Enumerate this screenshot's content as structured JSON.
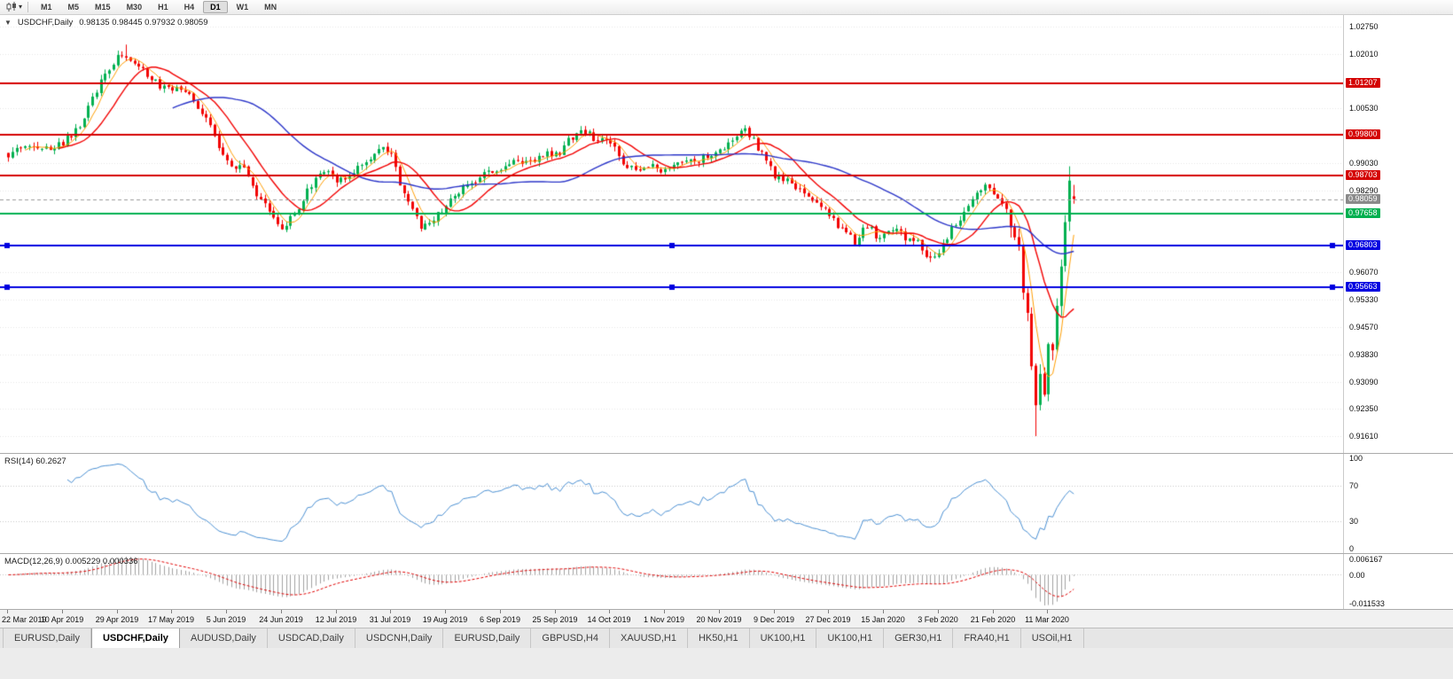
{
  "toolbar": {
    "timeframes": [
      {
        "label": "M1",
        "active": false
      },
      {
        "label": "M5",
        "active": false
      },
      {
        "label": "M15",
        "active": false
      },
      {
        "label": "M30",
        "active": false
      },
      {
        "label": "H1",
        "active": false
      },
      {
        "label": "H4",
        "active": false
      },
      {
        "label": "D1",
        "active": true
      },
      {
        "label": "W1",
        "active": false
      },
      {
        "label": "MN",
        "active": false
      }
    ]
  },
  "main_chart": {
    "title_symbol": "USDCHF,Daily",
    "ohlc_text": "0.98135 0.98445 0.97932 0.98059"
  },
  "indicators_display": {
    "rsi_label": "RSI(14) 60.2627",
    "macd_label": "MACD(12,26,9) 0.005229 0.000336"
  },
  "tab_bar": {
    "tabs": [
      {
        "label": "EURUSD,Daily",
        "active": false
      },
      {
        "label": "USDCHF,Daily",
        "active": true
      },
      {
        "label": "AUDUSD,Daily",
        "active": false
      },
      {
        "label": "USDCAD,Daily",
        "active": false
      },
      {
        "label": "USDCNH,Daily",
        "active": false
      },
      {
        "label": "EURUSD,Daily",
        "active": false
      },
      {
        "label": "GBPUSD,H4",
        "active": false
      },
      {
        "label": "XAUUSD,H1",
        "active": false
      },
      {
        "label": "HK50,H1",
        "active": false
      },
      {
        "label": "UK100,H1",
        "active": false
      },
      {
        "label": "UK100,H1",
        "active": false
      },
      {
        "label": "GER30,H1",
        "active": false
      },
      {
        "label": "FRA40,H1",
        "active": false
      },
      {
        "label": "USOil,H1",
        "active": false
      }
    ]
  },
  "chart_data": {
    "type": "candlestick",
    "symbol": "USDCHF",
    "timeframe": "Daily",
    "last_bar": {
      "open": 0.98135,
      "high": 0.98445,
      "low": 0.97932,
      "close": 0.98059
    },
    "n_bars": 254,
    "bars_per_label": 13,
    "seed": 20200319,
    "x_labels": [
      "22 Mar 2019",
      "10 Apr 2019",
      "29 Apr 2019",
      "17 May 2019",
      "5 Jun 2019",
      "24 Jun 2019",
      "12 Jul 2019",
      "31 Jul 2019",
      "19 Aug 2019",
      "6 Sep 2019",
      "25 Sep 2019",
      "14 Oct 2019",
      "1 Nov 2019",
      "20 Nov 2019",
      "9 Dec 2019",
      "27 Dec 2019",
      "15 Jan 2020",
      "3 Feb 2020",
      "21 Feb 2020",
      "11 Mar 2020"
    ],
    "y_axis": {
      "price_top": 1.03063,
      "price_bottom": 0.91153,
      "tick_labels": [
        "1.02750",
        "1.02010",
        "1.00530",
        "0.99030",
        "0.98290",
        "0.96070",
        "0.95330",
        "0.94570",
        "0.93830",
        "0.93090",
        "0.92350",
        "0.91610"
      ]
    },
    "levels": [
      {
        "price": 1.01207,
        "label": "1.01207",
        "color": "#d40000",
        "width": 2,
        "handles": false
      },
      {
        "price": 0.998,
        "label": "0.99800",
        "color": "#d40000",
        "width": 2,
        "handles": false
      },
      {
        "price": 0.98703,
        "label": "0.98703",
        "color": "#d40000",
        "width": 2,
        "handles": false
      },
      {
        "price": 0.97658,
        "label": "0.97658",
        "color": "#00b050",
        "width": 2,
        "handles": false
      },
      {
        "price": 0.96803,
        "label": "0.96803",
        "color": "#0000e0",
        "width": 2,
        "handles": true
      },
      {
        "price": 0.95663,
        "label": "0.95663",
        "color": "#0000e0",
        "width": 2,
        "handles": true
      }
    ],
    "current_price": {
      "label": "0.98059",
      "value": 0.98059,
      "badge_color": "#8a8a8a",
      "line_color": "#9b9b9b"
    },
    "candle_colors": {
      "up": "#00b050",
      "down": "#f20000"
    },
    "moving_averages": [
      {
        "period": 5,
        "color": "#ff9d00",
        "width": 1
      },
      {
        "period": 13,
        "color": "#f20000",
        "width": 1.4
      },
      {
        "period": 40,
        "color": "#2b35c8",
        "width": 1.4
      }
    ],
    "price_anchors": [
      [
        0,
        0.9925
      ],
      [
        4,
        0.9958
      ],
      [
        8,
        0.9936
      ],
      [
        13,
        0.9958
      ],
      [
        17,
        1.0006
      ],
      [
        22,
        1.0128
      ],
      [
        26,
        1.0196
      ],
      [
        29,
        1.0186
      ],
      [
        33,
        1.0142
      ],
      [
        36,
        1.0112
      ],
      [
        39,
        1.0106
      ],
      [
        43,
        1.0088
      ],
      [
        47,
        1.0022
      ],
      [
        50,
        0.9952
      ],
      [
        52,
        0.991
      ],
      [
        56,
        0.9882
      ],
      [
        60,
        0.9802
      ],
      [
        63,
        0.9762
      ],
      [
        65,
        0.9727
      ],
      [
        68,
        0.9762
      ],
      [
        71,
        0.983
      ],
      [
        75,
        0.9886
      ],
      [
        78,
        0.9856
      ],
      [
        82,
        0.9882
      ],
      [
        86,
        0.9916
      ],
      [
        89,
        0.9946
      ],
      [
        91,
        0.9936
      ],
      [
        93,
        0.9852
      ],
      [
        96,
        0.9772
      ],
      [
        98,
        0.9727
      ],
      [
        101,
        0.9747
      ],
      [
        104,
        0.9792
      ],
      [
        108,
        0.9842
      ],
      [
        112,
        0.9866
      ],
      [
        117,
        0.9892
      ],
      [
        121,
        0.9912
      ],
      [
        125,
        0.9906
      ],
      [
        128,
        0.993
      ],
      [
        131,
        0.9926
      ],
      [
        133,
        0.9966
      ],
      [
        136,
        0.9996
      ],
      [
        139,
        0.9972
      ],
      [
        143,
        0.9958
      ],
      [
        146,
        0.9906
      ],
      [
        150,
        0.9882
      ],
      [
        153,
        0.9896
      ],
      [
        156,
        0.9882
      ],
      [
        159,
        0.9902
      ],
      [
        163,
        0.9906
      ],
      [
        166,
        0.9926
      ],
      [
        169,
        0.9932
      ],
      [
        172,
        0.9962
      ],
      [
        175,
        0.9996
      ],
      [
        178,
        0.9946
      ],
      [
        180,
        0.9906
      ],
      [
        182,
        0.9872
      ],
      [
        185,
        0.9852
      ],
      [
        188,
        0.9826
      ],
      [
        191,
        0.9806
      ],
      [
        195,
        0.9766
      ],
      [
        198,
        0.9722
      ],
      [
        201,
        0.9692
      ],
      [
        204,
        0.9732
      ],
      [
        207,
        0.9697
      ],
      [
        210,
        0.9727
      ],
      [
        213,
        0.9702
      ],
      [
        216,
        0.9687
      ],
      [
        219,
        0.9637
      ],
      [
        221,
        0.9662
      ],
      [
        224,
        0.9722
      ],
      [
        227,
        0.9772
      ],
      [
        230,
        0.9817
      ],
      [
        232,
        0.9847
      ],
      [
        234,
        0.9827
      ],
      [
        236,
        0.9802
      ],
      [
        238,
        0.9747
      ],
      [
        240,
        0.9662
      ],
      [
        242,
        0.9482
      ],
      [
        244,
        0.9245
      ],
      [
        245,
        0.9322
      ],
      [
        246,
        0.9282
      ],
      [
        247,
        0.9422
      ],
      [
        248,
        0.9392
      ],
      [
        249,
        0.9502
      ],
      [
        250,
        0.9622
      ],
      [
        251,
        0.9762
      ],
      [
        252,
        0.9856
      ],
      [
        253,
        0.98059
      ]
    ],
    "forced": {
      "min_low_index": 244,
      "min_low": 0.9161,
      "spike_index": 28,
      "spike_high": 1.0226,
      "surge_index": 252,
      "surge_high": 0.9895
    },
    "rsi": {
      "period": 14,
      "color": "#4a8fd2",
      "levels": [
        70,
        30
      ],
      "scale_labels": [
        "100",
        "70",
        "30",
        "0"
      ],
      "scale_values": [
        100,
        70,
        30,
        0
      ],
      "current_value": "60.2627"
    },
    "macd": {
      "fast": 12,
      "slow": 26,
      "signal_period": 9,
      "histogram_color": "#a0a0a0",
      "signal_color": "#e00000",
      "scale_labels": [
        "0.006167",
        "0.00",
        "-0.011533"
      ],
      "current_values": "0.005229 0.000336"
    }
  }
}
